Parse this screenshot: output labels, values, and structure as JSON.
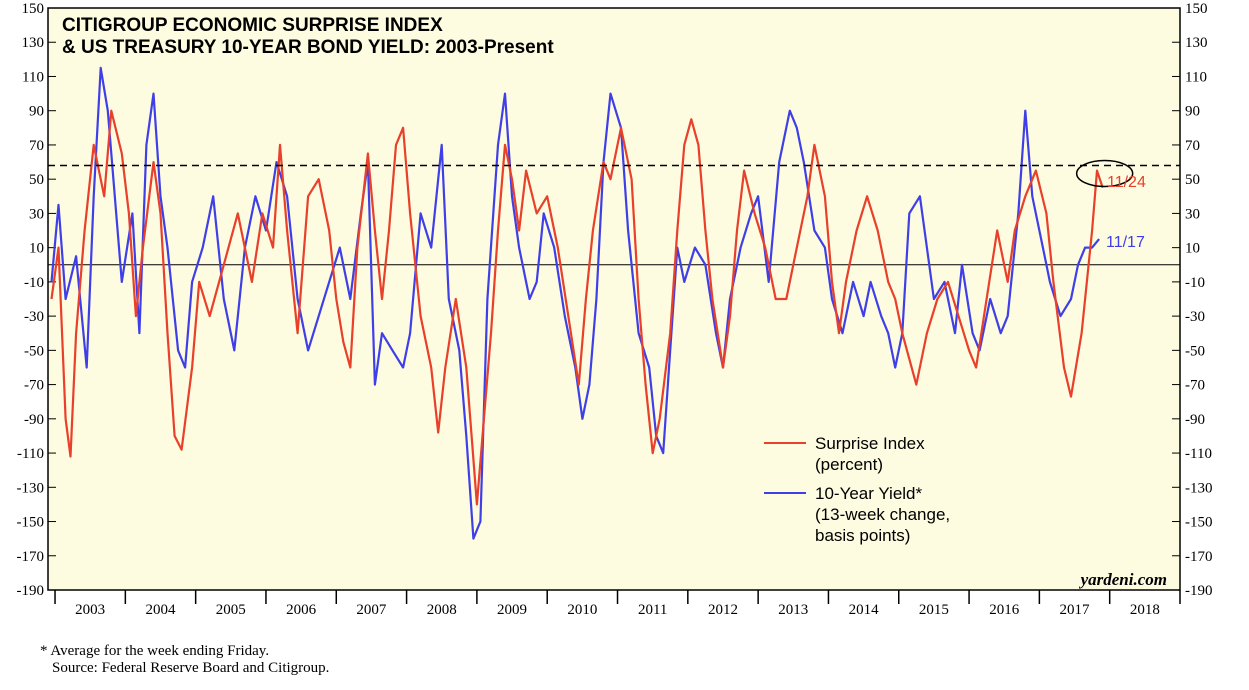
{
  "chart_data": {
    "type": "line",
    "title": "CITIGROUP ECONOMIC SURPRISE INDEX",
    "subtitle": "& US TREASURY 10-YEAR BOND YIELD: 2003-Present",
    "ylim": [
      -190,
      150
    ],
    "y_ticks": [
      "150",
      "130",
      "110",
      "90",
      "70",
      "50",
      "30",
      "10",
      "-10",
      "-30",
      "-50",
      "-70",
      "-90",
      "-110",
      "-130",
      "-150",
      "-170",
      "-190"
    ],
    "y_tick_values": [
      150,
      130,
      110,
      90,
      70,
      50,
      30,
      10,
      -10,
      -30,
      -50,
      -70,
      -90,
      -110,
      -130,
      -150,
      -170,
      -190
    ],
    "x_range": [
      2002.9,
      2019.0
    ],
    "x_ticks": [
      "2003",
      "2004",
      "2005",
      "2006",
      "2007",
      "2008",
      "2009",
      "2010",
      "2011",
      "2012",
      "2013",
      "2014",
      "2015",
      "2016",
      "2017",
      "2018"
    ],
    "zero_line": 0,
    "reference_line": 58,
    "series": [
      {
        "name": "Surprise Index",
        "legend": "Surprise Index",
        "legend_sub": "(percent)",
        "color": "#e8402a",
        "end_label": "11/24",
        "points": [
          [
            2002.95,
            -20
          ],
          [
            2003.05,
            10
          ],
          [
            2003.15,
            -90
          ],
          [
            2003.22,
            -112
          ],
          [
            2003.3,
            -40
          ],
          [
            2003.42,
            20
          ],
          [
            2003.55,
            70
          ],
          [
            2003.7,
            40
          ],
          [
            2003.8,
            90
          ],
          [
            2003.95,
            65
          ],
          [
            2004.05,
            30
          ],
          [
            2004.15,
            -30
          ],
          [
            2004.25,
            10
          ],
          [
            2004.4,
            60
          ],
          [
            2004.5,
            30
          ],
          [
            2004.6,
            -40
          ],
          [
            2004.7,
            -100
          ],
          [
            2004.8,
            -108
          ],
          [
            2004.95,
            -60
          ],
          [
            2005.05,
            -10
          ],
          [
            2005.2,
            -30
          ],
          [
            2005.4,
            0
          ],
          [
            2005.6,
            30
          ],
          [
            2005.8,
            -10
          ],
          [
            2005.95,
            30
          ],
          [
            2006.1,
            10
          ],
          [
            2006.2,
            70
          ],
          [
            2006.3,
            20
          ],
          [
            2006.45,
            -40
          ],
          [
            2006.6,
            40
          ],
          [
            2006.75,
            50
          ],
          [
            2006.9,
            20
          ],
          [
            2007.0,
            -20
          ],
          [
            2007.1,
            -45
          ],
          [
            2007.2,
            -60
          ],
          [
            2007.3,
            10
          ],
          [
            2007.45,
            65
          ],
          [
            2007.55,
            20
          ],
          [
            2007.65,
            -20
          ],
          [
            2007.75,
            20
          ],
          [
            2007.85,
            70
          ],
          [
            2007.95,
            80
          ],
          [
            2008.05,
            30
          ],
          [
            2008.2,
            -30
          ],
          [
            2008.35,
            -60
          ],
          [
            2008.45,
            -98
          ],
          [
            2008.55,
            -60
          ],
          [
            2008.7,
            -20
          ],
          [
            2008.85,
            -60
          ],
          [
            2009.0,
            -140
          ],
          [
            2009.1,
            -90
          ],
          [
            2009.2,
            -40
          ],
          [
            2009.3,
            20
          ],
          [
            2009.4,
            70
          ],
          [
            2009.5,
            50
          ],
          [
            2009.6,
            20
          ],
          [
            2009.7,
            55
          ],
          [
            2009.85,
            30
          ],
          [
            2010.0,
            40
          ],
          [
            2010.15,
            10
          ],
          [
            2010.3,
            -30
          ],
          [
            2010.45,
            -70
          ],
          [
            2010.55,
            -20
          ],
          [
            2010.65,
            20
          ],
          [
            2010.8,
            60
          ],
          [
            2010.9,
            50
          ],
          [
            2011.05,
            80
          ],
          [
            2011.2,
            50
          ],
          [
            2011.3,
            -20
          ],
          [
            2011.4,
            -70
          ],
          [
            2011.5,
            -110
          ],
          [
            2011.6,
            -90
          ],
          [
            2011.75,
            -40
          ],
          [
            2011.85,
            20
          ],
          [
            2011.95,
            70
          ],
          [
            2012.05,
            85
          ],
          [
            2012.15,
            70
          ],
          [
            2012.25,
            20
          ],
          [
            2012.35,
            -20
          ],
          [
            2012.5,
            -60
          ],
          [
            2012.6,
            -30
          ],
          [
            2012.7,
            20
          ],
          [
            2012.8,
            55
          ],
          [
            2012.95,
            30
          ],
          [
            2013.1,
            10
          ],
          [
            2013.25,
            -20
          ],
          [
            2013.4,
            -20
          ],
          [
            2013.55,
            10
          ],
          [
            2013.7,
            40
          ],
          [
            2013.8,
            70
          ],
          [
            2013.95,
            40
          ],
          [
            2014.05,
            -10
          ],
          [
            2014.15,
            -40
          ],
          [
            2014.25,
            -10
          ],
          [
            2014.4,
            20
          ],
          [
            2014.55,
            40
          ],
          [
            2014.7,
            20
          ],
          [
            2014.85,
            -10
          ],
          [
            2014.95,
            -20
          ],
          [
            2015.05,
            -40
          ],
          [
            2015.15,
            -55
          ],
          [
            2015.25,
            -70
          ],
          [
            2015.4,
            -40
          ],
          [
            2015.55,
            -20
          ],
          [
            2015.7,
            -10
          ],
          [
            2015.85,
            -30
          ],
          [
            2016.0,
            -50
          ],
          [
            2016.1,
            -60
          ],
          [
            2016.25,
            -20
          ],
          [
            2016.4,
            20
          ],
          [
            2016.55,
            -10
          ],
          [
            2016.65,
            20
          ],
          [
            2016.8,
            40
          ],
          [
            2016.95,
            55
          ],
          [
            2017.1,
            30
          ],
          [
            2017.2,
            -10
          ],
          [
            2017.35,
            -60
          ],
          [
            2017.45,
            -77
          ],
          [
            2017.6,
            -40
          ],
          [
            2017.75,
            20
          ],
          [
            2017.82,
            55
          ],
          [
            2017.9,
            45
          ]
        ]
      },
      {
        "name": "10-Year Yield*",
        "legend": "10-Year Yield*",
        "legend_sub": "(13-week change,",
        "legend_sub2": "basis points)",
        "color": "#3f3fe8",
        "end_label": "11/17",
        "points": [
          [
            2002.95,
            -10
          ],
          [
            2003.05,
            35
          ],
          [
            2003.15,
            -20
          ],
          [
            2003.3,
            5
          ],
          [
            2003.45,
            -60
          ],
          [
            2003.55,
            40
          ],
          [
            2003.65,
            115
          ],
          [
            2003.75,
            90
          ],
          [
            2003.85,
            40
          ],
          [
            2003.95,
            -10
          ],
          [
            2004.1,
            30
          ],
          [
            2004.2,
            -40
          ],
          [
            2004.3,
            70
          ],
          [
            2004.4,
            100
          ],
          [
            2004.5,
            40
          ],
          [
            2004.6,
            10
          ],
          [
            2004.75,
            -50
          ],
          [
            2004.85,
            -60
          ],
          [
            2004.95,
            -10
          ],
          [
            2005.1,
            10
          ],
          [
            2005.25,
            40
          ],
          [
            2005.4,
            -20
          ],
          [
            2005.55,
            -50
          ],
          [
            2005.7,
            10
          ],
          [
            2005.85,
            40
          ],
          [
            2006.0,
            20
          ],
          [
            2006.15,
            60
          ],
          [
            2006.3,
            40
          ],
          [
            2006.45,
            -20
          ],
          [
            2006.6,
            -50
          ],
          [
            2006.75,
            -30
          ],
          [
            2006.9,
            -10
          ],
          [
            2007.05,
            10
          ],
          [
            2007.2,
            -20
          ],
          [
            2007.35,
            30
          ],
          [
            2007.45,
            60
          ],
          [
            2007.55,
            -70
          ],
          [
            2007.65,
            -40
          ],
          [
            2007.8,
            -50
          ],
          [
            2007.95,
            -60
          ],
          [
            2008.05,
            -40
          ],
          [
            2008.2,
            30
          ],
          [
            2008.35,
            10
          ],
          [
            2008.5,
            70
          ],
          [
            2008.6,
            -20
          ],
          [
            2008.75,
            -50
          ],
          [
            2008.85,
            -100
          ],
          [
            2008.95,
            -160
          ],
          [
            2009.05,
            -150
          ],
          [
            2009.15,
            -20
          ],
          [
            2009.3,
            70
          ],
          [
            2009.4,
            100
          ],
          [
            2009.5,
            40
          ],
          [
            2009.6,
            10
          ],
          [
            2009.75,
            -20
          ],
          [
            2009.85,
            -10
          ],
          [
            2009.95,
            30
          ],
          [
            2010.1,
            10
          ],
          [
            2010.25,
            -30
          ],
          [
            2010.4,
            -60
          ],
          [
            2010.5,
            -90
          ],
          [
            2010.6,
            -70
          ],
          [
            2010.7,
            -20
          ],
          [
            2010.8,
            60
          ],
          [
            2010.9,
            100
          ],
          [
            2011.05,
            80
          ],
          [
            2011.15,
            20
          ],
          [
            2011.3,
            -40
          ],
          [
            2011.45,
            -60
          ],
          [
            2011.55,
            -100
          ],
          [
            2011.65,
            -110
          ],
          [
            2011.75,
            -50
          ],
          [
            2011.85,
            10
          ],
          [
            2011.95,
            -10
          ],
          [
            2012.1,
            10
          ],
          [
            2012.25,
            0
          ],
          [
            2012.4,
            -40
          ],
          [
            2012.5,
            -60
          ],
          [
            2012.6,
            -20
          ],
          [
            2012.75,
            10
          ],
          [
            2012.9,
            30
          ],
          [
            2013.0,
            40
          ],
          [
            2013.15,
            -10
          ],
          [
            2013.3,
            60
          ],
          [
            2013.45,
            90
          ],
          [
            2013.55,
            80
          ],
          [
            2013.65,
            60
          ],
          [
            2013.8,
            20
          ],
          [
            2013.95,
            10
          ],
          [
            2014.05,
            -20
          ],
          [
            2014.2,
            -40
          ],
          [
            2014.35,
            -10
          ],
          [
            2014.5,
            -30
          ],
          [
            2014.6,
            -10
          ],
          [
            2014.75,
            -30
          ],
          [
            2014.85,
            -40
          ],
          [
            2014.95,
            -60
          ],
          [
            2015.05,
            -40
          ],
          [
            2015.15,
            30
          ],
          [
            2015.3,
            40
          ],
          [
            2015.4,
            10
          ],
          [
            2015.5,
            -20
          ],
          [
            2015.65,
            -10
          ],
          [
            2015.8,
            -40
          ],
          [
            2015.9,
            0
          ],
          [
            2016.05,
            -40
          ],
          [
            2016.15,
            -50
          ],
          [
            2016.3,
            -20
          ],
          [
            2016.45,
            -40
          ],
          [
            2016.55,
            -30
          ],
          [
            2016.7,
            30
          ],
          [
            2016.8,
            90
          ],
          [
            2016.9,
            40
          ],
          [
            2017.05,
            10
          ],
          [
            2017.15,
            -10
          ],
          [
            2017.3,
            -30
          ],
          [
            2017.45,
            -20
          ],
          [
            2017.55,
            0
          ],
          [
            2017.65,
            10
          ],
          [
            2017.75,
            10
          ],
          [
            2017.85,
            15
          ]
        ]
      }
    ]
  },
  "watermark": "yardeni.com",
  "footnote": {
    "line1": "*   Average for the week ending Friday.",
    "line2": "Source: Federal Reserve Board and Citigroup."
  },
  "colors": {
    "plot_background": "#fdfbe0",
    "surprise": "#e8402a",
    "yield": "#3f3fe8"
  }
}
